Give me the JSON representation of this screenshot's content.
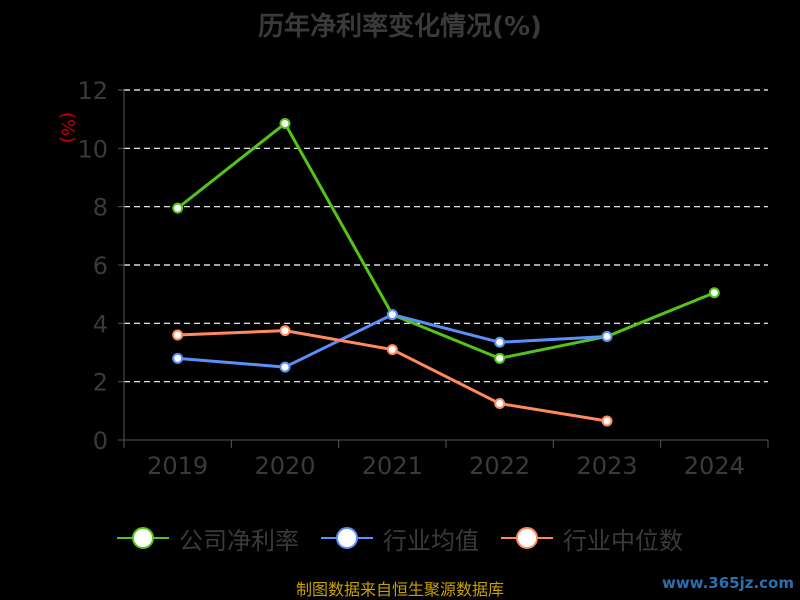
{
  "chart_data": {
    "type": "line",
    "title": "历年净利率变化情况(%)",
    "ylabel": "(%)",
    "categories": [
      "2019",
      "2020",
      "2021",
      "2022",
      "2023",
      "2024"
    ],
    "ylim": [
      0,
      12
    ],
    "yticks": [
      0,
      2,
      4,
      6,
      8,
      10,
      12
    ],
    "grid": true,
    "legend_position": "bottom",
    "series": [
      {
        "name": "公司净利率",
        "color": "#52c41a",
        "values": [
          7.95,
          10.85,
          4.3,
          2.8,
          3.55,
          5.05
        ]
      },
      {
        "name": "行业均值",
        "color": "#5b8ff9",
        "values": [
          2.8,
          2.5,
          4.3,
          3.35,
          3.55,
          null
        ]
      },
      {
        "name": "行业中位数",
        "color": "#ff8a5b",
        "values": [
          3.6,
          3.75,
          3.1,
          1.25,
          0.65,
          null
        ]
      }
    ]
  },
  "footer": {
    "source": "制图数据来自恒生聚源数据库",
    "watermark": "www.365jz.com"
  }
}
